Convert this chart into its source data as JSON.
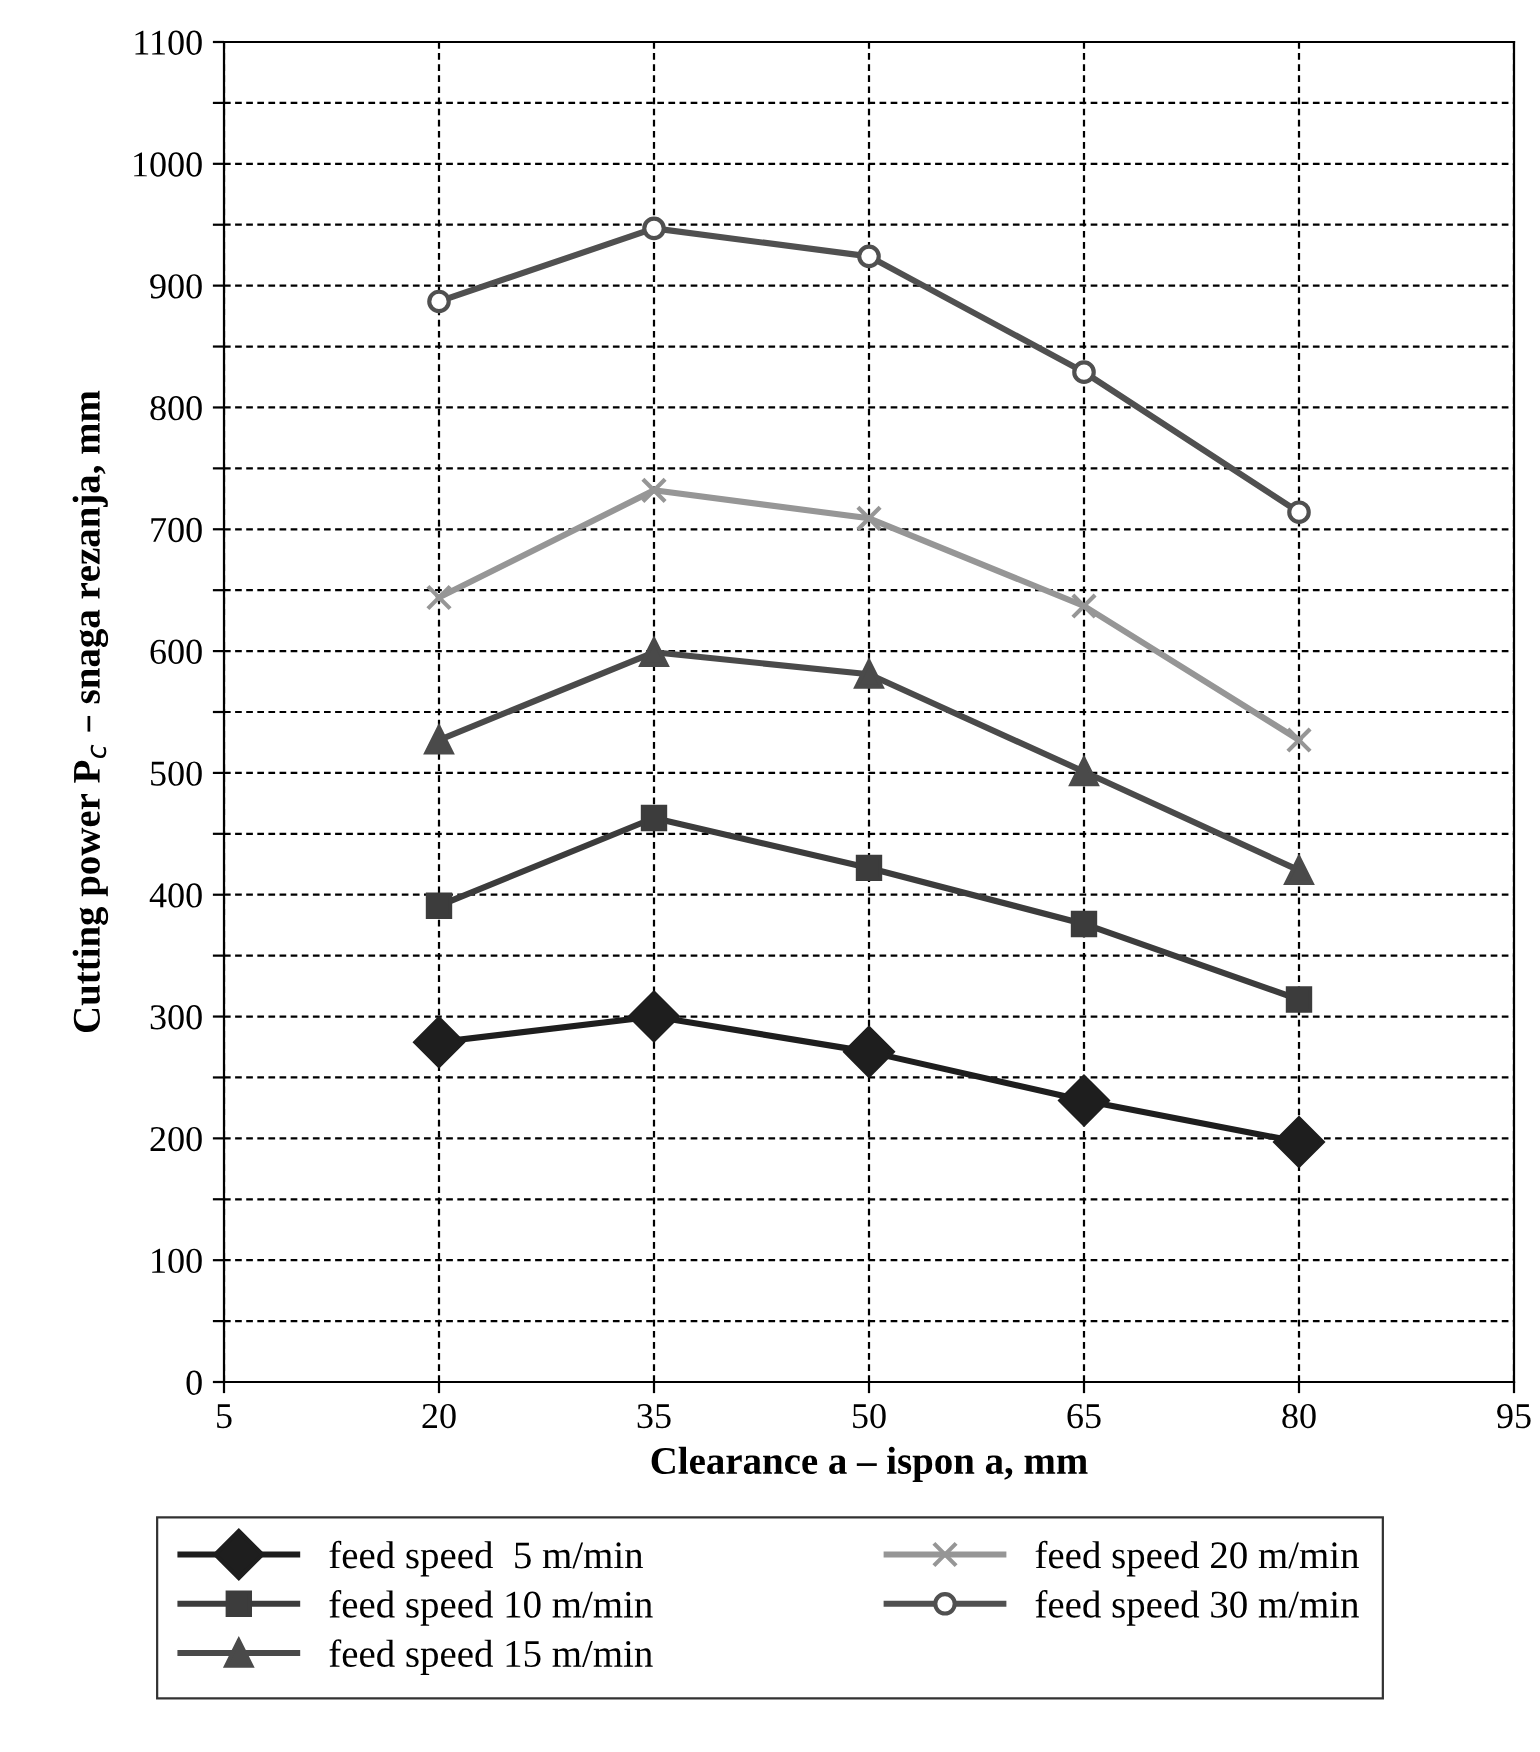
{
  "chart_data": {
    "type": "line",
    "xlabel": "Clearance a – ispon a, mm",
    "ylabel": "Cutting power P$_{c}$ – snaga rezanja, mm",
    "xlim": [
      5,
      95
    ],
    "xticks": [
      5,
      20,
      35,
      50,
      65,
      80,
      95
    ],
    "ylim": [
      0,
      1100
    ],
    "yticks": [
      0,
      {
        "value": 50,
        "label": null
      },
      100,
      {
        "value": 150,
        "label": null
      },
      200,
      {
        "value": 250,
        "label": null
      },
      300,
      {
        "value": 350,
        "label": null
      },
      400,
      {
        "value": 450,
        "label": null
      },
      500,
      {
        "value": 550,
        "label": null
      },
      600,
      {
        "value": 650,
        "label": null
      },
      700,
      {
        "value": 750,
        "label": null
      },
      800,
      {
        "value": 850,
        "label": null
      },
      900,
      {
        "value": 950,
        "label": null
      },
      1000,
      {
        "value": 1050,
        "label": null
      },
      1100
    ],
    "grid": true,
    "legend": "bottom",
    "line_style": "solid",
    "x": [
      20,
      35,
      50,
      65,
      80
    ],
    "series": [
      {
        "name": "feed speed  5 m/min",
        "color": "#1e1e1e",
        "marker": "diamond",
        "values": [
          279,
          300,
          271,
          231,
          197
        ]
      },
      {
        "name": "feed speed 10 m/min",
        "color": "#3c3c3c",
        "marker": "square",
        "values": [
          391,
          463,
          422,
          376,
          314
        ]
      },
      {
        "name": "feed speed 15 m/min",
        "color": "#4a4a4a",
        "marker": "triangle",
        "values": [
          527,
          599,
          581,
          501,
          420
        ]
      },
      {
        "name": "feed speed 20 m/min",
        "color": "#969696",
        "marker": "cross",
        "values": [
          644,
          732,
          709,
          637,
          527
        ]
      },
      {
        "name": "feed speed 30 m/min",
        "color": "#505050",
        "marker": "circle",
        "values": [
          887,
          947,
          924,
          829,
          714
        ]
      }
    ]
  }
}
